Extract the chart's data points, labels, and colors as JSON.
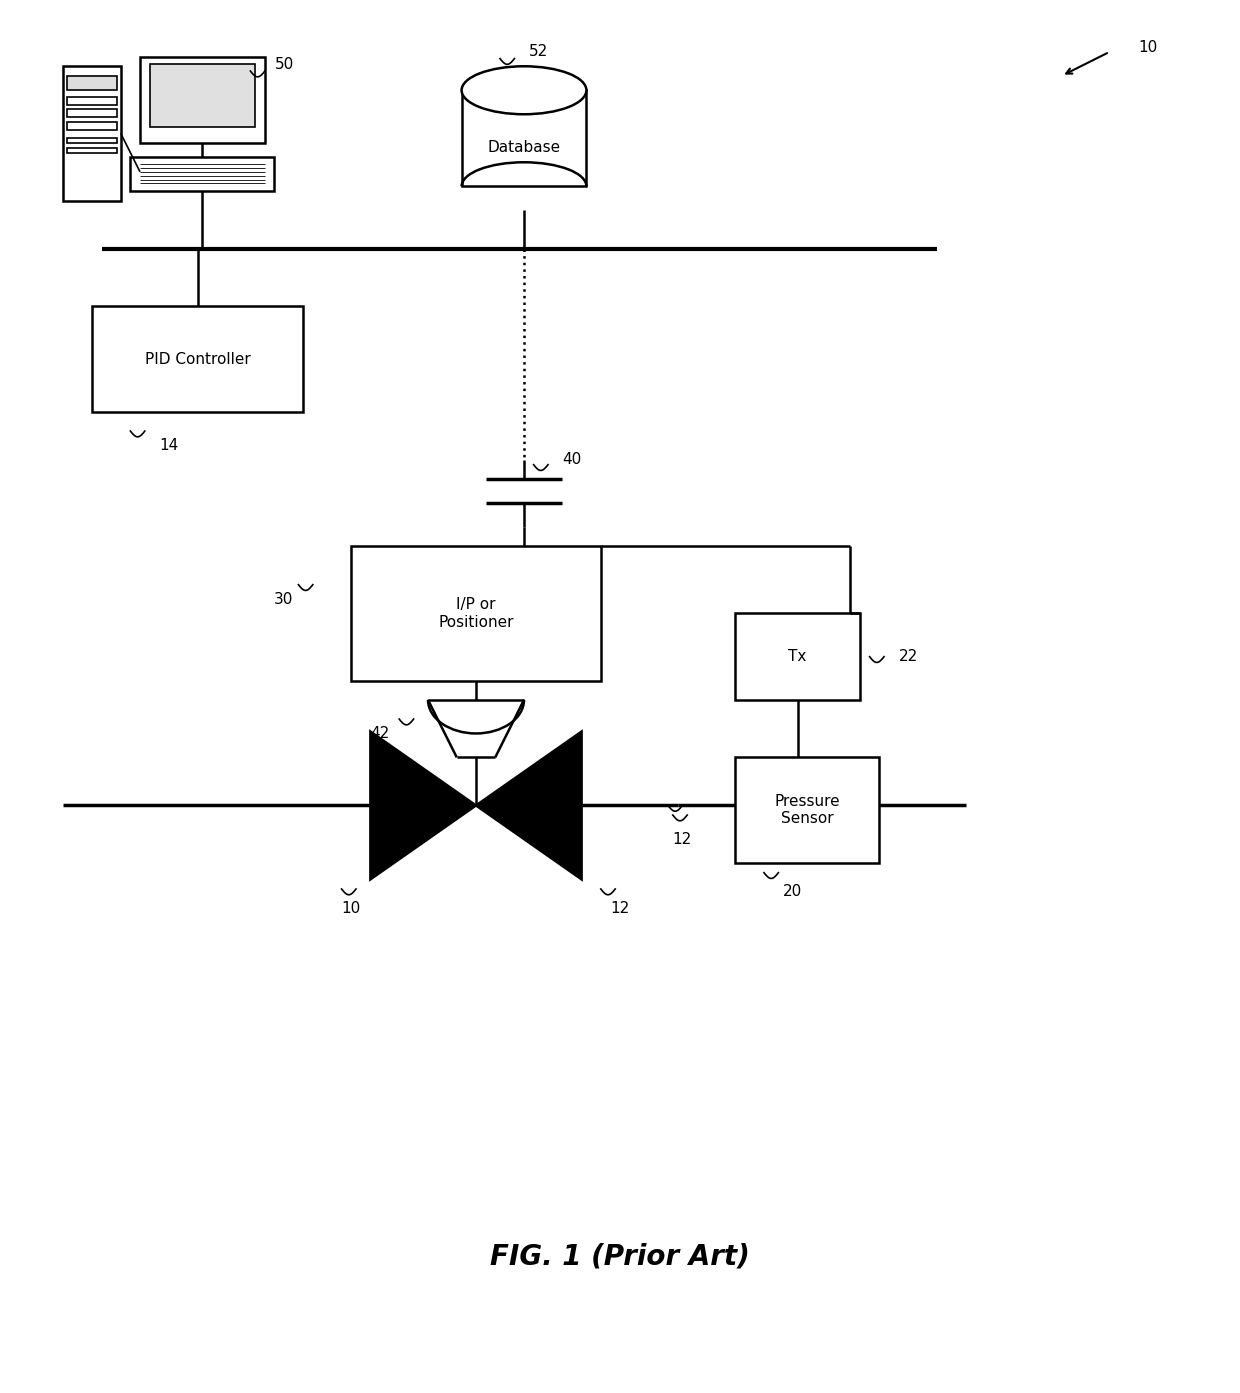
{
  "title": "FIG. 1 (Prior Art)",
  "bg_color": "#ffffff",
  "line_color": "#000000",
  "fig_width": 12.4,
  "fig_height": 13.93,
  "labels": {
    "fig_num": "10",
    "computer": "50",
    "database": "52",
    "pid_controller": "PID Controller",
    "pid_label": "14",
    "ip_positioner": "I/P or\nPositioner",
    "ip_label": "30",
    "tx": "Tx",
    "tx_label": "22",
    "pressure_sensor": "Pressure\nSensor",
    "pressure_label": "20",
    "db_text": "Database",
    "actuator_label": "42",
    "valve_left_label": "10",
    "valve_right_label": "12",
    "signal_label": "40"
  }
}
